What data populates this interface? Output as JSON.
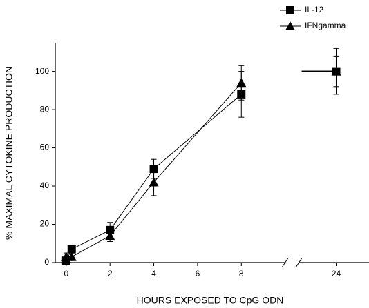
{
  "chart_data": {
    "type": "line",
    "x_label": "HOURS EXPOSED TO CpG ODN",
    "y_label": "% MAXIMAL CYTOKINE PRODUCTION",
    "x": [
      0,
      0.25,
      2,
      4,
      8,
      24
    ],
    "xlim": [
      -0.5,
      25.5
    ],
    "xbreak": [
      10,
      22.3
    ],
    "xticks": [
      0,
      2,
      4,
      6,
      8,
      24
    ],
    "ylim": [
      0,
      115
    ],
    "yticks": [
      0,
      20,
      40,
      60,
      80,
      100
    ],
    "legend": "top-right",
    "series": [
      {
        "name": "IL-12",
        "color": "#000000",
        "marker": "square",
        "values": [
          1,
          7,
          17,
          49,
          88,
          100
        ],
        "errors": [
          1,
          2,
          4,
          5,
          12,
          12
        ]
      },
      {
        "name": "IFNgamma",
        "color": "#000000",
        "marker": "triangle",
        "values": [
          3,
          3,
          14,
          42,
          94,
          100
        ],
        "errors": [
          2,
          2,
          3,
          7,
          9,
          8
        ]
      }
    ]
  }
}
